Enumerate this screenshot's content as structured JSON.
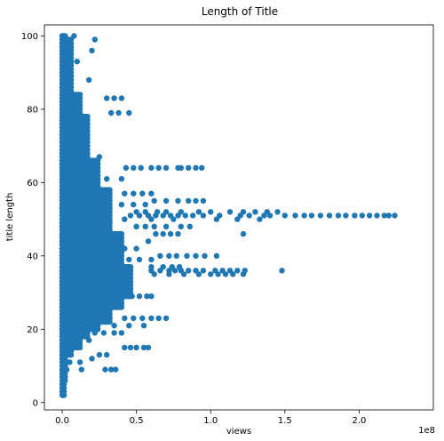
{
  "chart_data": {
    "type": "scatter",
    "title": "Length of Title",
    "xlabel": "views",
    "ylabel": "title length",
    "x_offset_text": "1e8",
    "x_unit": "views",
    "xlim": [
      -12000000.0,
      250000000.0
    ],
    "ylim": [
      -2,
      103
    ],
    "x_ticks": [
      0,
      50000000.0,
      100000000.0,
      150000000.0,
      200000000.0
    ],
    "x_tick_labels": [
      "0.0",
      "0.5",
      "1.0",
      "1.5",
      "2.0"
    ],
    "y_ticks": [
      0,
      20,
      40,
      60,
      80,
      100
    ],
    "y_tick_labels": [
      "0",
      "20",
      "40",
      "60",
      "80",
      "100"
    ],
    "grid": false,
    "marker_color": "#1f77b4",
    "series": [
      {
        "points": [
          [
            0.0,
            3
          ],
          [
            1000000.0,
            4
          ],
          [
            2000000.0,
            6
          ],
          [
            1000000.0,
            8
          ],
          [
            3000000.0,
            9
          ],
          [
            13000000.0,
            9
          ],
          [
            29000000.0,
            9
          ],
          [
            33000000.0,
            9
          ],
          [
            36000000.0,
            9
          ],
          [
            5000000.0,
            11
          ],
          [
            12000000.0,
            11
          ],
          [
            20000000.0,
            12
          ],
          [
            25000000.0,
            13
          ],
          [
            30000000.0,
            13
          ],
          [
            42000000.0,
            15
          ],
          [
            46000000.0,
            15
          ],
          [
            50000000.0,
            15
          ],
          [
            55000000.0,
            15
          ],
          [
            58000000.0,
            15
          ],
          [
            18000000.0,
            17
          ],
          [
            22000000.0,
            19
          ],
          [
            28000000.0,
            19
          ],
          [
            35000000.0,
            19
          ],
          [
            40000000.0,
            19
          ],
          [
            15000000.0,
            21
          ],
          [
            35000000.0,
            21
          ],
          [
            45000000.0,
            21
          ],
          [
            55000000.0,
            21
          ],
          [
            10000000.0,
            23
          ],
          [
            32000000.0,
            23
          ],
          [
            42000000.0,
            23
          ],
          [
            48000000.0,
            23
          ],
          [
            54000000.0,
            23
          ],
          [
            60000000.0,
            23
          ],
          [
            65000000.0,
            23
          ],
          [
            70000000.0,
            23
          ],
          [
            18000000.0,
            25
          ],
          [
            26000000.0,
            27
          ],
          [
            32000000.0,
            27
          ],
          [
            40000000.0,
            27
          ],
          [
            47000000.0,
            29
          ],
          [
            52000000.0,
            29
          ],
          [
            57000000.0,
            29
          ],
          [
            60000000.0,
            29
          ],
          [
            30000000.0,
            31
          ],
          [
            35000000.0,
            33
          ],
          [
            42000000.0,
            33
          ],
          [
            62000000.0,
            35
          ],
          [
            72000000.0,
            35
          ],
          [
            82000000.0,
            35
          ],
          [
            92000000.0,
            35
          ],
          [
            100000000.0,
            35
          ],
          [
            105000000.0,
            35
          ],
          [
            110000000.0,
            35
          ],
          [
            115000000.0,
            35
          ],
          [
            122000000.0,
            35
          ],
          [
            148000000.0,
            36
          ],
          [
            38000000.0,
            36
          ],
          [
            46000000.0,
            36
          ],
          [
            60000000.0,
            36
          ],
          [
            66000000.0,
            36
          ],
          [
            72000000.0,
            36
          ],
          [
            76000000.0,
            36
          ],
          [
            80000000.0,
            36
          ],
          [
            85000000.0,
            36
          ],
          [
            90000000.0,
            36
          ],
          [
            95000000.0,
            36
          ],
          [
            103000000.0,
            36
          ],
          [
            108000000.0,
            36
          ],
          [
            113000000.0,
            36
          ],
          [
            118000000.0,
            36
          ],
          [
            123000000.0,
            36
          ],
          [
            60000000.0,
            37
          ],
          [
            68000000.0,
            37
          ],
          [
            74000000.0,
            37
          ],
          [
            79000000.0,
            37
          ],
          [
            45000000.0,
            39
          ],
          [
            52000000.0,
            39
          ],
          [
            60000000.0,
            39
          ],
          [
            66000000.0,
            40
          ],
          [
            72000000.0,
            40
          ],
          [
            77000000.0,
            40
          ],
          [
            84000000.0,
            40
          ],
          [
            90000000.0,
            40
          ],
          [
            96000000.0,
            40
          ],
          [
            104000000.0,
            40
          ],
          [
            42000000.0,
            42
          ],
          [
            50000000.0,
            42
          ],
          [
            58000000.0,
            44
          ],
          [
            122000000.0,
            46
          ],
          [
            63000000.0,
            46
          ],
          [
            68000000.0,
            46
          ],
          [
            73000000.0,
            46
          ],
          [
            78000000.0,
            46
          ],
          [
            50000000.0,
            48
          ],
          [
            56000000.0,
            48
          ],
          [
            62000000.0,
            48
          ],
          [
            70000000.0,
            48
          ],
          [
            80000000.0,
            48
          ],
          [
            86000000.0,
            48
          ],
          [
            42000000.0,
            50
          ],
          [
            60000000.0,
            50
          ],
          [
            75000000.0,
            50
          ],
          [
            104000000.0,
            50
          ],
          [
            118000000.0,
            50
          ],
          [
            133000000.0,
            50
          ],
          [
            46000000.0,
            51
          ],
          [
            52000000.0,
            51
          ],
          [
            58000000.0,
            51
          ],
          [
            63000000.0,
            51
          ],
          [
            68000000.0,
            51
          ],
          [
            73000000.0,
            51
          ],
          [
            78000000.0,
            51
          ],
          [
            83000000.0,
            51
          ],
          [
            88000000.0,
            51
          ],
          [
            95000000.0,
            51
          ],
          [
            106000000.0,
            51
          ],
          [
            120000000.0,
            51
          ],
          [
            126000000.0,
            51
          ],
          [
            136000000.0,
            51
          ],
          [
            140000000.0,
            51
          ],
          [
            150000000.0,
            51
          ],
          [
            157000000.0,
            51
          ],
          [
            163000000.0,
            51
          ],
          [
            168000000.0,
            51
          ],
          [
            174000000.0,
            51
          ],
          [
            180000000.0,
            51
          ],
          [
            186000000.0,
            51
          ],
          [
            191000000.0,
            51
          ],
          [
            197000000.0,
            51
          ],
          [
            202000000.0,
            51
          ],
          [
            207000000.0,
            51
          ],
          [
            212000000.0,
            51
          ],
          [
            217000000.0,
            51
          ],
          [
            220000000.0,
            51
          ],
          [
            224000000.0,
            51
          ],
          [
            50000000.0,
            52
          ],
          [
            56000000.0,
            52
          ],
          [
            64000000.0,
            52
          ],
          [
            70000000.0,
            52
          ],
          [
            80000000.0,
            52
          ],
          [
            92000000.0,
            52
          ],
          [
            100000000.0,
            52
          ],
          [
            113000000.0,
            52
          ],
          [
            122000000.0,
            52
          ],
          [
            130000000.0,
            52
          ],
          [
            138000000.0,
            52
          ],
          [
            145000000.0,
            52
          ],
          [
            40000000.0,
            54
          ],
          [
            48000000.0,
            54
          ],
          [
            56000000.0,
            54
          ],
          [
            62000000.0,
            55
          ],
          [
            70000000.0,
            55
          ],
          [
            78000000.0,
            55
          ],
          [
            85000000.0,
            55
          ],
          [
            90000000.0,
            55
          ],
          [
            95000000.0,
            55
          ],
          [
            42000000.0,
            57
          ],
          [
            48000000.0,
            57
          ],
          [
            54000000.0,
            57
          ],
          [
            60000000.0,
            57
          ],
          [
            20000000.0,
            59
          ],
          [
            30000000.0,
            61
          ],
          [
            40000000.0,
            61
          ],
          [
            43000000.0,
            64
          ],
          [
            48000000.0,
            64
          ],
          [
            53000000.0,
            64
          ],
          [
            60000000.0,
            64
          ],
          [
            65000000.0,
            64
          ],
          [
            70000000.0,
            64
          ],
          [
            78000000.0,
            64
          ],
          [
            80000000.0,
            64
          ],
          [
            85000000.0,
            64
          ],
          [
            90000000.0,
            64
          ],
          [
            94000000.0,
            64
          ],
          [
            20000000.0,
            65
          ],
          [
            25000000.0,
            67
          ],
          [
            33000000.0,
            79
          ],
          [
            38000000.0,
            79
          ],
          [
            45000000.0,
            79
          ],
          [
            30000000.0,
            83
          ],
          [
            35000000.0,
            83
          ],
          [
            40000000.0,
            83
          ],
          [
            18000000.0,
            88
          ],
          [
            10000000.0,
            93
          ],
          [
            20000000.0,
            96
          ],
          [
            22000000.0,
            99
          ],
          [
            8000000.0,
            100
          ]
        ],
        "dense_bands": [
          {
            "y": [
              2,
              100
            ],
            "xmax": 1200000.0
          },
          {
            "y": [
              7,
              100
            ],
            "xmax": 2000000.0
          },
          {
            "y": [
              13,
              99
            ],
            "xmax": 6000000.0
          },
          {
            "y": [
              15,
              84
            ],
            "xmax": 12000000.0
          },
          {
            "y": [
              18,
              78
            ],
            "xmax": 17000000.0
          },
          {
            "y": [
              20,
              66
            ],
            "xmax": 24000000.0
          },
          {
            "y": [
              22,
              58
            ],
            "xmax": 32000000.0
          },
          {
            "y": [
              26,
              46
            ],
            "xmax": 40000000.0
          },
          {
            "y": [
              29,
              37
            ],
            "xmax": 46000000.0
          }
        ]
      }
    ]
  }
}
